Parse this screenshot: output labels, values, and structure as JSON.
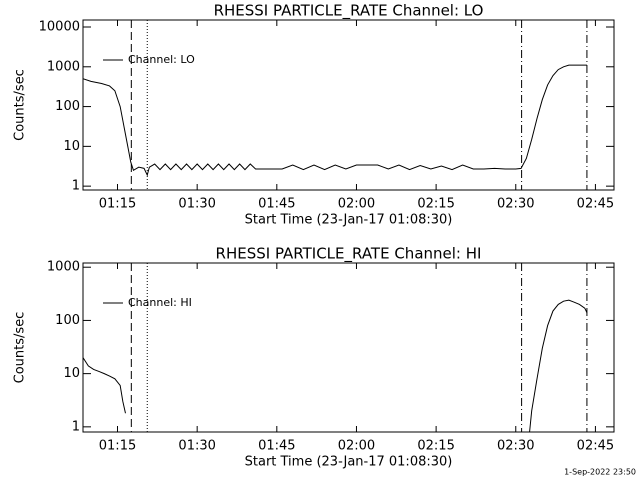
{
  "chart_data": [
    {
      "type": "line",
      "title": "RHESSI PARTICLE_RATE Channel: LO",
      "xlabel": "Start Time (23-Jan-17 01:08:30)",
      "ylabel": "Counts/sec",
      "log_y": true,
      "legend": "upper left",
      "color": "#000000",
      "xlim": [
        68.5,
        168.5
      ],
      "ylim": [
        0.8,
        15000
      ],
      "xticks": [
        {
          "value": 75,
          "label": "01:15"
        },
        {
          "value": 90,
          "label": "01:30"
        },
        {
          "value": 105,
          "label": "01:45"
        },
        {
          "value": 120,
          "label": "02:00"
        },
        {
          "value": 135,
          "label": "02:15"
        },
        {
          "value": 150,
          "label": "02:30"
        },
        {
          "value": 165,
          "label": "02:45"
        }
      ],
      "yticks": [
        1,
        10,
        100,
        1000,
        10000
      ],
      "vlines": [
        {
          "value": 77.6,
          "style": "dashed"
        },
        {
          "value": 80.6,
          "style": "dotted"
        },
        {
          "value": 151.1,
          "style": "dashdot"
        },
        {
          "value": 163.4,
          "style": "dashdot"
        }
      ],
      "series": [
        {
          "name": "Channel: LO",
          "color": "#000000",
          "x": [
            68.5,
            70,
            72,
            73.5,
            74.5,
            75.5,
            76.5,
            77.5,
            78,
            79,
            80,
            80.6,
            81,
            82,
            83,
            84,
            85,
            86,
            87,
            88,
            89,
            90,
            91,
            92,
            93,
            94,
            95,
            96,
            97,
            98,
            99,
            100,
            101,
            102,
            104,
            106,
            108,
            110,
            112,
            114,
            116,
            118,
            120,
            122,
            124,
            126,
            128,
            130,
            132,
            134,
            136,
            138,
            140,
            142,
            144,
            146,
            148,
            150,
            151,
            152,
            153,
            154,
            155,
            156,
            157,
            158,
            159,
            160,
            163.4
          ],
          "values": [
            500,
            430,
            380,
            330,
            250,
            100,
            20,
            4,
            2.5,
            3,
            2.8,
            1.9,
            3,
            3.6,
            2.6,
            3.6,
            2.6,
            3.6,
            2.6,
            3.6,
            2.6,
            3.6,
            2.6,
            3.6,
            2.6,
            3.6,
            2.6,
            3.6,
            2.6,
            3.6,
            2.6,
            3.6,
            2.7,
            2.7,
            2.7,
            2.7,
            3.4,
            2.6,
            3.4,
            2.6,
            3.4,
            2.7,
            3.4,
            3.4,
            3.4,
            2.7,
            3.4,
            2.6,
            3.3,
            2.7,
            3.2,
            2.6,
            3.4,
            2.7,
            2.7,
            2.8,
            2.7,
            2.7,
            2.8,
            5,
            15,
            50,
            150,
            350,
            600,
            850,
            1000,
            1100,
            1100
          ]
        }
      ]
    },
    {
      "type": "line",
      "title": "RHESSI PARTICLE_RATE Channel: HI",
      "xlabel": "Start Time (23-Jan-17 01:08:30)",
      "ylabel": "Counts/sec",
      "log_y": true,
      "legend": "upper left",
      "color": "#000000",
      "xlim": [
        68.5,
        168.5
      ],
      "ylim": [
        0.8,
        1200
      ],
      "xticks": [
        {
          "value": 75,
          "label": "01:15"
        },
        {
          "value": 90,
          "label": "01:30"
        },
        {
          "value": 105,
          "label": "01:45"
        },
        {
          "value": 120,
          "label": "02:00"
        },
        {
          "value": 135,
          "label": "02:15"
        },
        {
          "value": 150,
          "label": "02:30"
        },
        {
          "value": 165,
          "label": "02:45"
        }
      ],
      "yticks": [
        1,
        10,
        100,
        1000
      ],
      "vlines": [
        {
          "value": 77.6,
          "style": "dashed"
        },
        {
          "value": 80.6,
          "style": "dotted"
        },
        {
          "value": 151.1,
          "style": "dashdot"
        },
        {
          "value": 163.4,
          "style": "dashdot"
        }
      ],
      "series": [
        {
          "name": "Channel: HI",
          "color": "#000000",
          "x": [
            68.5,
            69.5,
            70.5,
            71.5,
            72.5,
            73.5,
            74.5,
            75.5,
            76,
            76.5,
            100,
            152.6,
            153,
            154,
            155,
            156,
            157,
            158,
            159,
            160,
            161,
            162,
            163,
            163.4
          ],
          "values": [
            20,
            14,
            12,
            11,
            10,
            9,
            8,
            6,
            3,
            1.8,
            null,
            0.8,
            2,
            8,
            30,
            80,
            150,
            200,
            230,
            240,
            220,
            200,
            170,
            140
          ]
        }
      ]
    }
  ],
  "footer": "1-Sep-2022 23:50"
}
